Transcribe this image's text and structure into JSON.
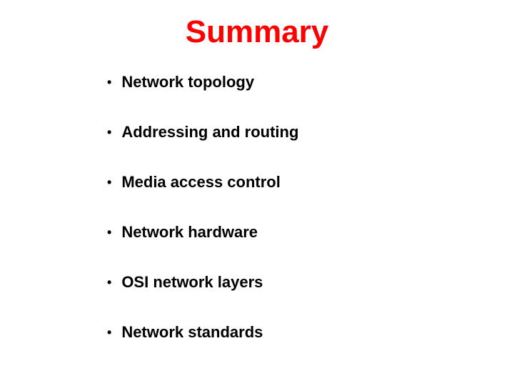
{
  "title": {
    "text": "Summary",
    "color": "#ff0000",
    "fontsize": 44
  },
  "bullets": {
    "items": [
      "Network topology",
      "Addressing and routing",
      "Media access control",
      "Network hardware",
      "OSI network layers",
      "Network standards"
    ],
    "color": "#000000",
    "fontsize": 22,
    "bullet_char": "•"
  },
  "background_color": "#ffffff"
}
